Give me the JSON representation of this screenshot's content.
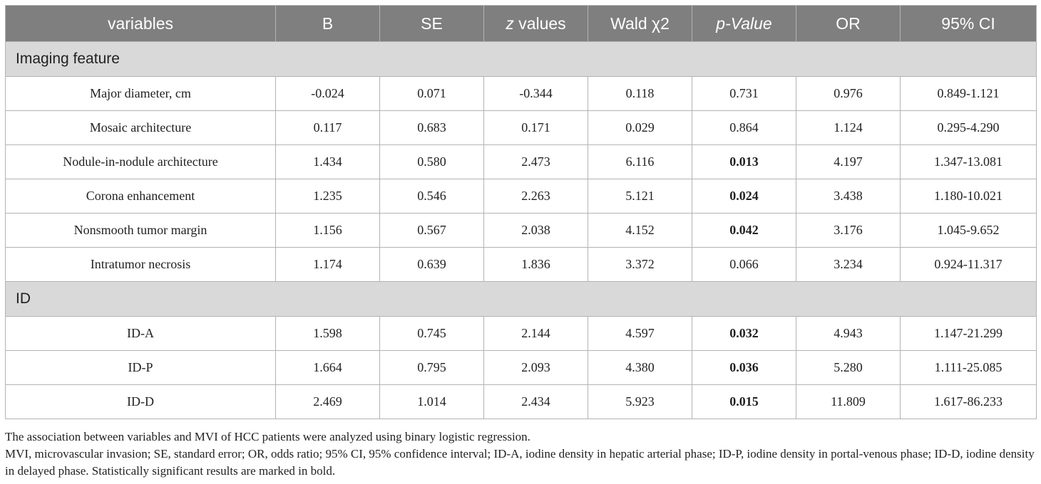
{
  "table": {
    "headers": {
      "variables": "variables",
      "b": "B",
      "se": "SE",
      "z_italic": "z",
      "z_rest": " values",
      "wald": "Wald χ2",
      "p": "p-Value",
      "or": "OR",
      "ci": "95% CI"
    },
    "sections": [
      {
        "title": "Imaging feature",
        "rows": [
          {
            "variable": "Major diameter, cm",
            "b": "-0.024",
            "se": "0.071",
            "z": "-0.344",
            "wald": "0.118",
            "p": "0.731",
            "p_bold": false,
            "or": "0.976",
            "ci": "0.849-1.121"
          },
          {
            "variable": "Mosaic architecture",
            "b": "0.117",
            "se": "0.683",
            "z": "0.171",
            "wald": "0.029",
            "p": "0.864",
            "p_bold": false,
            "or": "1.124",
            "ci": "0.295-4.290"
          },
          {
            "variable": "Nodule-in-nodule architecture",
            "b": "1.434",
            "se": "0.580",
            "z": "2.473",
            "wald": "6.116",
            "p": "0.013",
            "p_bold": true,
            "or": "4.197",
            "ci": "1.347-13.081"
          },
          {
            "variable": "Corona enhancement",
            "b": "1.235",
            "se": "0.546",
            "z": "2.263",
            "wald": "5.121",
            "p": "0.024",
            "p_bold": true,
            "or": "3.438",
            "ci": "1.180-10.021"
          },
          {
            "variable": "Nonsmooth tumor margin",
            "b": "1.156",
            "se": "0.567",
            "z": "2.038",
            "wald": "4.152",
            "p": "0.042",
            "p_bold": true,
            "or": "3.176",
            "ci": "1.045-9.652"
          },
          {
            "variable": "Intratumor necrosis",
            "b": "1.174",
            "se": "0.639",
            "z": "1.836",
            "wald": "3.372",
            "p": "0.066",
            "p_bold": false,
            "or": "3.234",
            "ci": "0.924-11.317"
          }
        ]
      },
      {
        "title": "ID",
        "rows": [
          {
            "variable": "ID-A",
            "b": "1.598",
            "se": "0.745",
            "z": "2.144",
            "wald": "4.597",
            "p": "0.032",
            "p_bold": true,
            "or": "4.943",
            "ci": "1.147-21.299"
          },
          {
            "variable": "ID-P",
            "b": "1.664",
            "se": "0.795",
            "z": "2.093",
            "wald": "4.380",
            "p": "0.036",
            "p_bold": true,
            "or": "5.280",
            "ci": "1.111-25.085"
          },
          {
            "variable": "ID-D",
            "b": "2.469",
            "se": "1.014",
            "z": "2.434",
            "wald": "5.923",
            "p": "0.015",
            "p_bold": true,
            "or": "11.809",
            "ci": "1.617-86.233"
          }
        ]
      }
    ]
  },
  "footnotes": [
    "The association between variables and MVI of HCC patients were analyzed using binary logistic regression.",
    "MVI, microvascular invasion; SE, standard error; OR, odds ratio; 95% CI, 95% confidence interval; ID-A, iodine density in hepatic arterial phase; ID-P, iodine density in portal-venous phase; ID-D, iodine density in delayed phase. Statistically significant results are marked in bold."
  ]
}
